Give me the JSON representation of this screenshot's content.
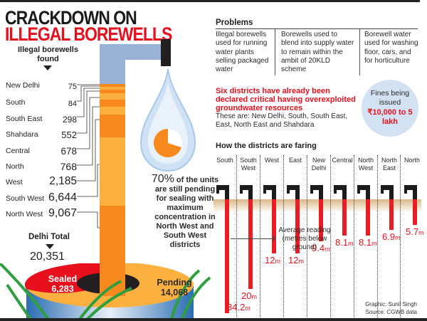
{
  "title": {
    "line1": "CRACKDOWN ON",
    "line2": "ILLEGAL BOREWELLS"
  },
  "left_panel": {
    "found_label": "Illegal borewells found",
    "districts": [
      {
        "name": "New Delhi",
        "value": "75"
      },
      {
        "name": "South",
        "value": "84"
      },
      {
        "name": "South East",
        "value": "298"
      },
      {
        "name": "Shahdara",
        "value": "552"
      },
      {
        "name": "Central",
        "value": "678"
      },
      {
        "name": "North",
        "value": "768"
      },
      {
        "name": "West",
        "value": "2,185"
      },
      {
        "name": "South West",
        "value": "6,644"
      },
      {
        "name": "North West",
        "value": "9,067"
      }
    ],
    "total_label": "Delhi Total",
    "total_value": "20,351",
    "sealed_label": "Sealed",
    "sealed_value": "6,283",
    "pending_label": "Pending",
    "pending_value": "14,068",
    "pct_big": "70%",
    "pct_text": " of the units are still pending for sealing with maximum concentration in North West and South West districts"
  },
  "problems": {
    "title": "Problems",
    "items": [
      "Illegal borewells used for running water plants selling packaged water",
      "Borewells used to blend into supply water to remain within the ambit of 20KLD scheme",
      "Borewell water used for washing floor, cars, and for horticulture"
    ]
  },
  "critical": {
    "headline": "Six districts have already been declared critical having overexploited groundwater resources",
    "detail": "These are: New Delhi, South, South East, East, North East and Shahdara"
  },
  "fines": {
    "label": "Fines being issued",
    "value": "₹10,000 to 5 lakh"
  },
  "how_title": "How the districts are faring",
  "avg_note": "Average reading (metres below ground)",
  "credits": {
    "graphic": "Graphic: Sunil Singh",
    "source": "Source: CGWB data"
  },
  "colors": {
    "red": "#e8101c",
    "orange": "#f7891f",
    "light_orange": "#fbb040",
    "pipe_blue": "#98b2d6",
    "drop_blue": "#cfe2f5"
  },
  "chart_data": [
    {
      "type": "bar",
      "title": "Illegal borewells found",
      "categories": [
        "New Delhi",
        "South",
        "South East",
        "Shahdara",
        "Central",
        "North",
        "West",
        "South West",
        "North West"
      ],
      "values": [
        75,
        84,
        298,
        552,
        678,
        768,
        2185,
        6644,
        9067
      ],
      "total": 20351
    },
    {
      "type": "pie",
      "title": "Delhi Total borewells status",
      "categories": [
        "Sealed",
        "Pending"
      ],
      "values": [
        6283,
        14068
      ]
    },
    {
      "type": "bar",
      "title": "How the districts are faring",
      "ylabel": "Average reading (metres below ground)",
      "categories": [
        "South",
        "South West",
        "West",
        "East",
        "New Delhi",
        "Central",
        "North West",
        "North East",
        "North"
      ],
      "values": [
        34.2,
        20,
        12,
        12,
        9.4,
        8.1,
        8.1,
        6.9,
        5.7
      ],
      "labels": [
        "34.2m",
        "20m",
        "12m",
        "12m",
        "9.4m",
        "8.1m",
        "8.1m",
        "6.9m",
        "5.7m"
      ]
    }
  ]
}
